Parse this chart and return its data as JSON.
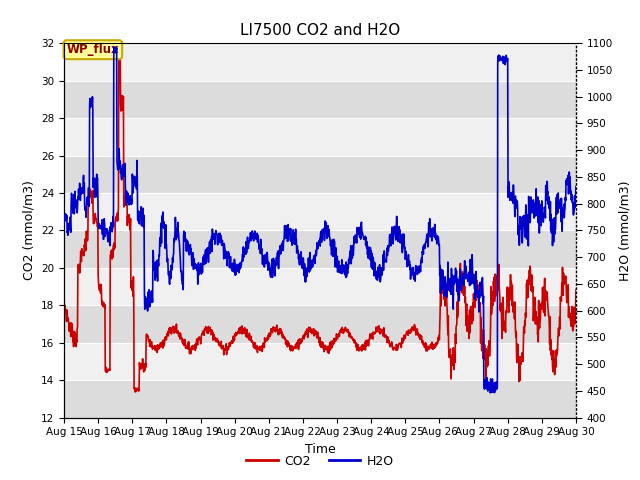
{
  "title": "LI7500 CO2 and H2O",
  "xlabel": "Time",
  "ylabel_left": "CO2 (mmol/m3)",
  "ylabel_right": "H2O (mmol/m3)",
  "ylim_left": [
    12,
    32
  ],
  "ylim_right": [
    400,
    1100
  ],
  "yticks_left": [
    12,
    14,
    16,
    18,
    20,
    22,
    24,
    26,
    28,
    30,
    32
  ],
  "yticks_right": [
    400,
    450,
    500,
    550,
    600,
    650,
    700,
    750,
    800,
    850,
    900,
    950,
    1000,
    1050,
    1100
  ],
  "xticklabels": [
    "Aug 15",
    "Aug 16",
    "Aug 17",
    "Aug 18",
    "Aug 19",
    "Aug 20",
    "Aug 21",
    "Aug 22",
    "Aug 23",
    "Aug 24",
    "Aug 25",
    "Aug 26",
    "Aug 27",
    "Aug 28",
    "Aug 29",
    "Aug 30"
  ],
  "co2_color": "#cc0000",
  "h2o_color": "#0000cc",
  "fig_bg_color": "#ffffff",
  "plot_bg_light": "#f0f0f0",
  "plot_bg_dark": "#dcdcdc",
  "watermark_text": "WP_flux",
  "watermark_fg": "#8b0000",
  "watermark_bg": "#ffff99",
  "watermark_border": "#c8a800",
  "legend_co2": "CO2",
  "legend_h2o": "H2O",
  "title_fontsize": 11,
  "label_fontsize": 9,
  "tick_fontsize": 7.5,
  "legend_fontsize": 9,
  "line_width": 1.2
}
